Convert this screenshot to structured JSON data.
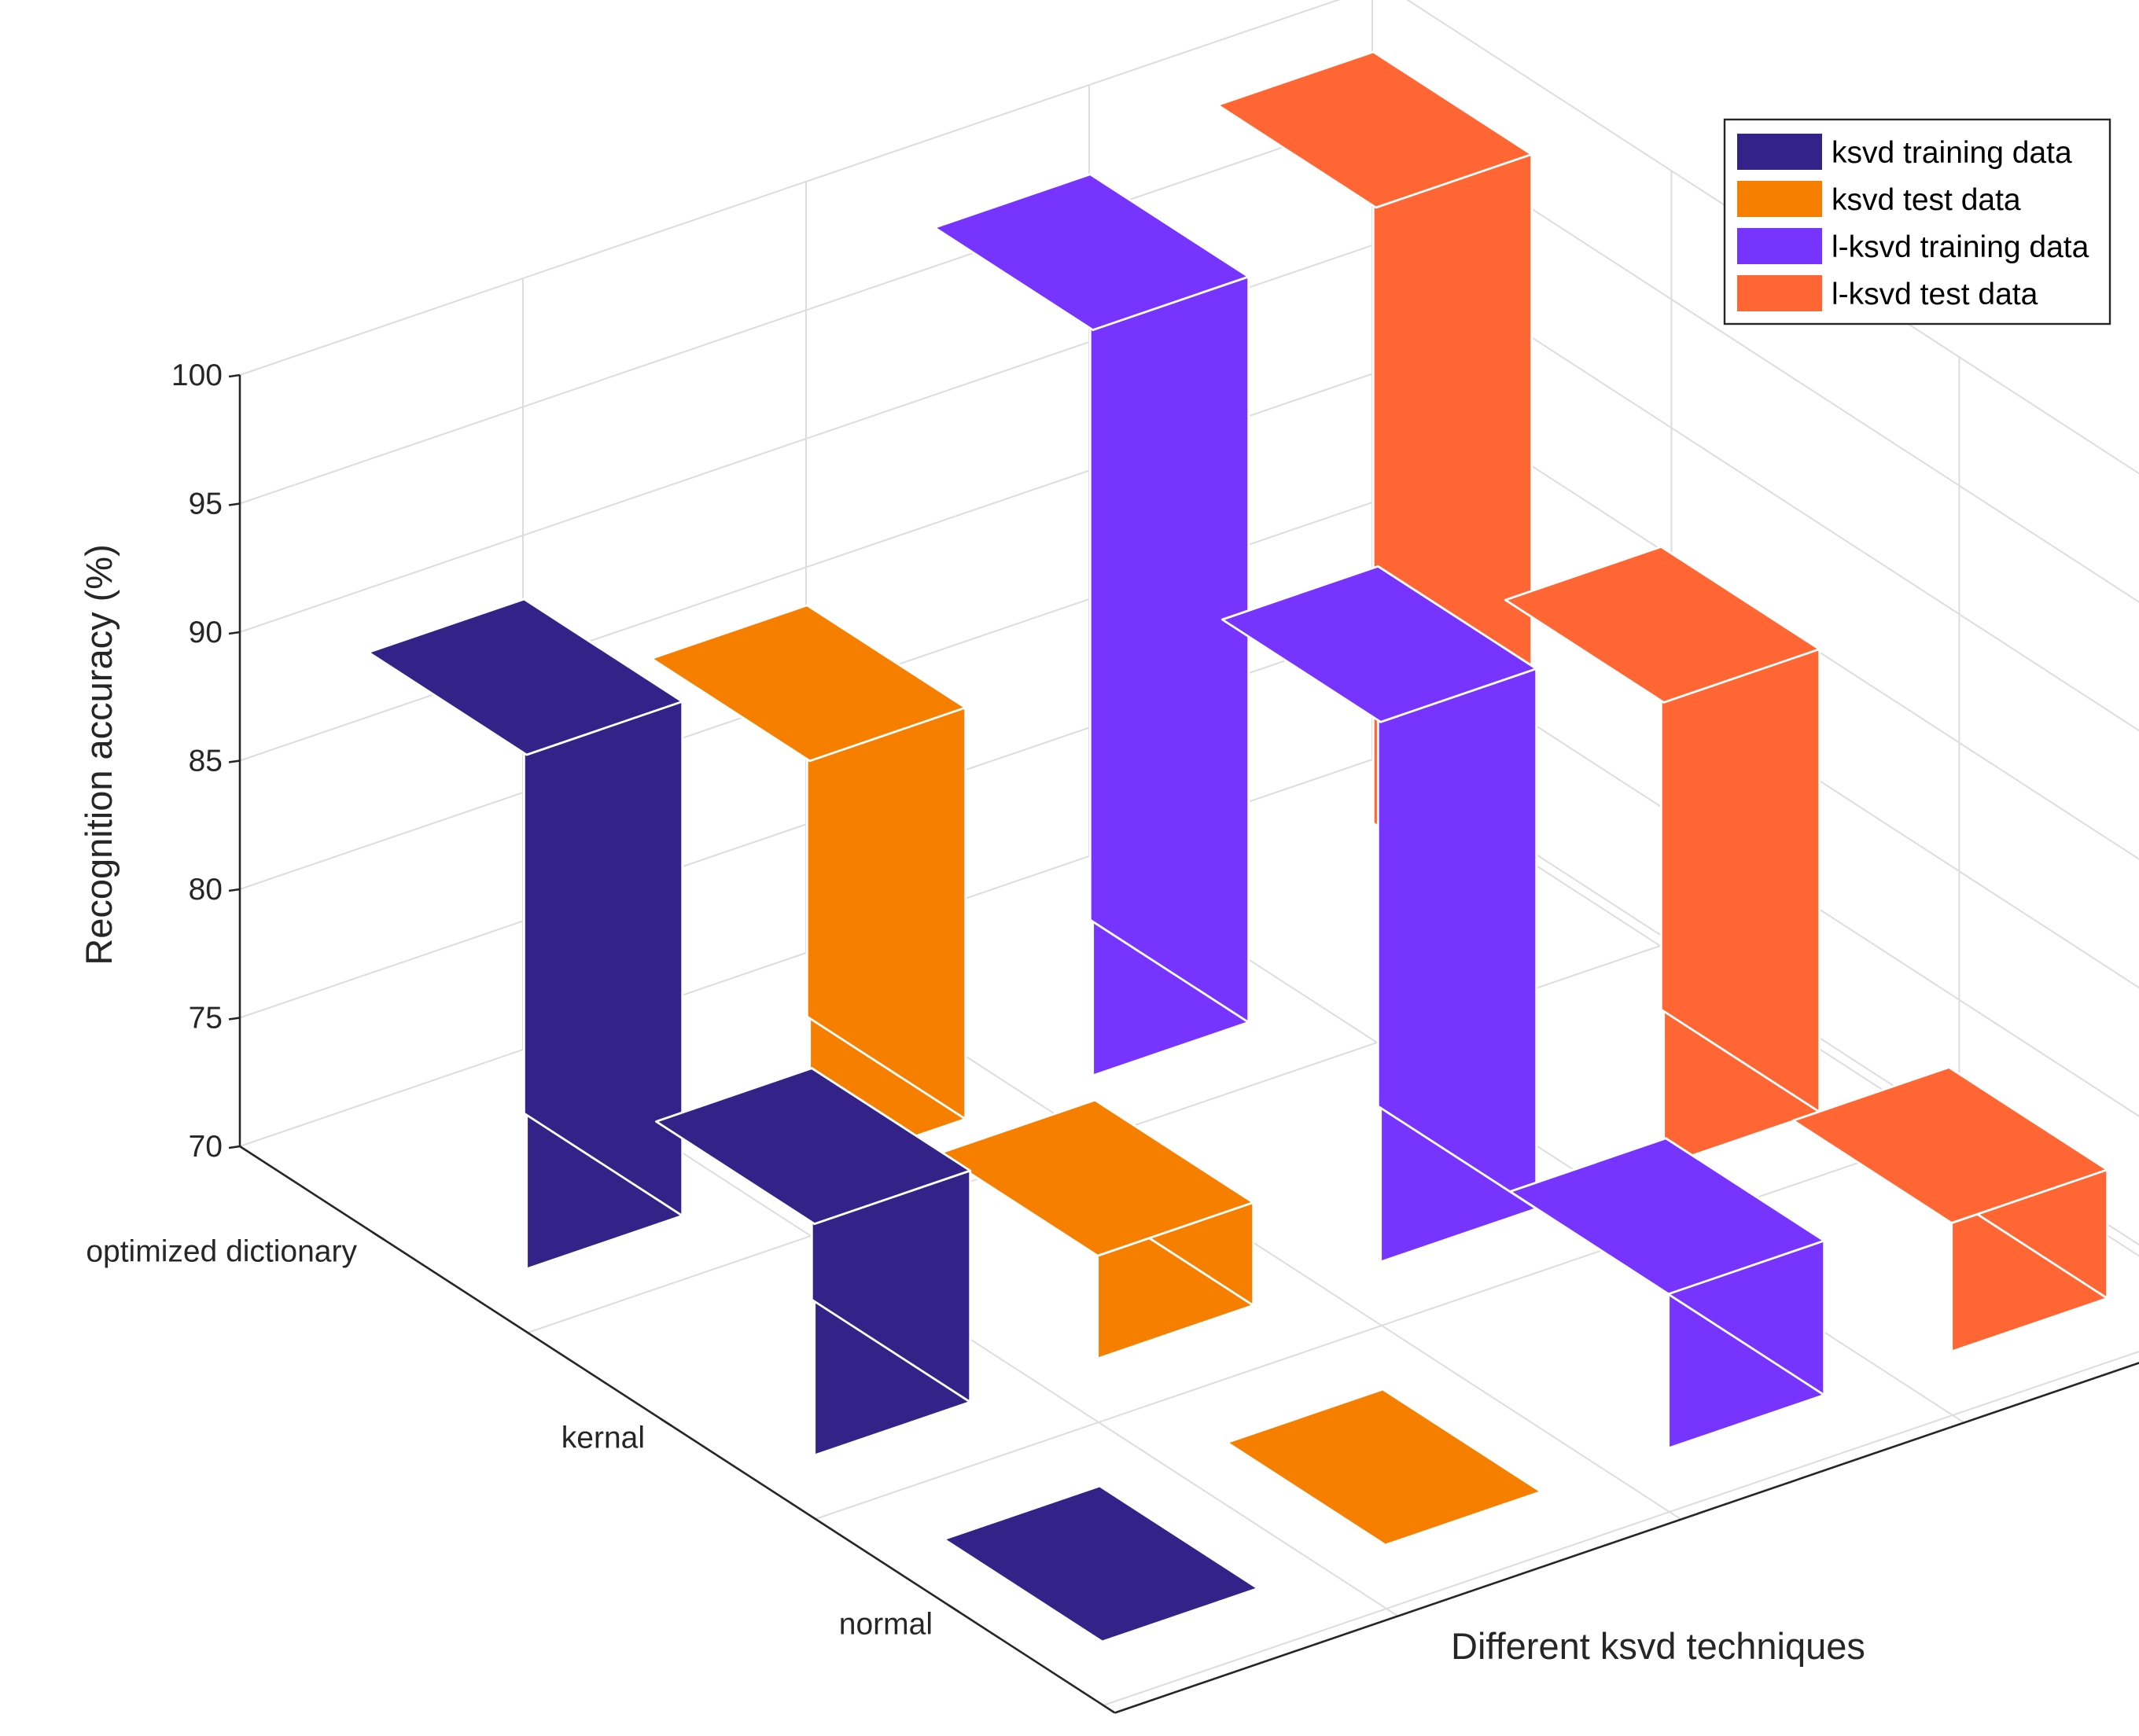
{
  "chart_data": {
    "type": "bar3d",
    "title": "",
    "xlabel": "Different ksvd techniques",
    "ylabel": "Recognition accuracy (%)",
    "zlim": [
      70,
      100
    ],
    "z_ticks": [
      "70",
      "75",
      "80",
      "85",
      "90",
      "95",
      "100"
    ],
    "categories": [
      "optimized dictionary",
      "kernal",
      "normal"
    ],
    "grid": true,
    "legend_position": "top-right",
    "series": [
      {
        "name": "ksvd training data",
        "color": "#332288",
        "values": [
          90,
          79,
          64
        ]
      },
      {
        "name": "ksvd test data",
        "color": "#f77f00",
        "values": [
          86,
          74,
          69
        ]
      },
      {
        "name": "l-ksvd training data",
        "color": "#7733ff",
        "values": [
          99,
          91,
          76
        ]
      },
      {
        "name": "l-ksvd test data",
        "color": "#ff6633",
        "values": [
          100,
          88,
          75
        ]
      }
    ]
  }
}
